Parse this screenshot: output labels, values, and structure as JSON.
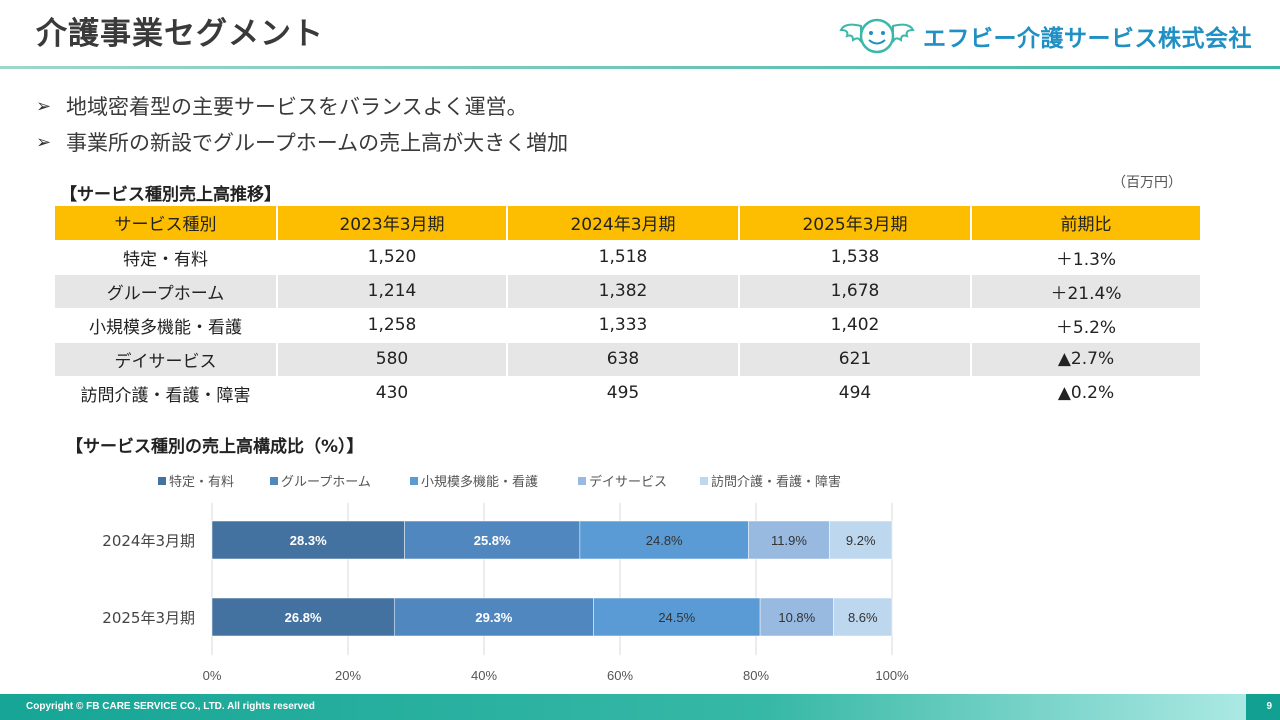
{
  "header": {
    "title": "介護事業セグメント",
    "logo_text": "エフビー介護サービス株式会社"
  },
  "bullets": [
    "地域密着型の主要サービスをバランスよく運営。",
    "事業所の新設でグループホームの売上高が大きく増加"
  ],
  "table": {
    "title": "【サービス種別売上高推移】",
    "unit": "（百万円）",
    "headers": [
      "サービス種別",
      "2023年3月期",
      "2024年3月期",
      "2025年3月期",
      "前期比"
    ],
    "rows": [
      [
        "特定・有料",
        "1,520",
        "1,518",
        "1,538",
        "＋1.3%"
      ],
      [
        "グループホーム",
        "1,214",
        "1,382",
        "1,678",
        "＋21.4%"
      ],
      [
        "小規模多機能・看護",
        "1,258",
        "1,333",
        "1,402",
        "＋5.2%"
      ],
      [
        "デイサービス",
        "580",
        "638",
        "621",
        "▲2.7%"
      ],
      [
        "訪問介護・看護・障害",
        "430",
        "495",
        "494",
        "▲0.2%"
      ]
    ]
  },
  "chart_title": "【サービス種別の売上高構成比（%）】",
  "chart_data": {
    "type": "bar",
    "orientation": "horizontal",
    "stacked": true,
    "categories": [
      "2024年3月期",
      "2025年3月期"
    ],
    "series": [
      {
        "name": "特定・有料",
        "values": [
          28.3,
          26.8
        ],
        "color": "#4472a0"
      },
      {
        "name": "グループホーム",
        "values": [
          25.8,
          29.3
        ],
        "color": "#5087bf"
      },
      {
        "name": "小規模多機能・看護",
        "values": [
          24.8,
          24.5
        ],
        "color": "#5b9bd5"
      },
      {
        "name": "デイサービス",
        "values": [
          11.9,
          10.8
        ],
        "color": "#98b9e0"
      },
      {
        "name": "訪問介護・看護・障害",
        "values": [
          9.2,
          8.6
        ],
        "color": "#bdd7ee"
      }
    ],
    "xlim": [
      0,
      100
    ],
    "xticks": [
      "0%",
      "20%",
      "40%",
      "60%",
      "80%",
      "100%"
    ],
    "legend": "top",
    "grid": true
  },
  "footer": {
    "copyright": "Copyright © FB CARE SERVICE CO., LTD. All rights reserved",
    "page": "9"
  }
}
